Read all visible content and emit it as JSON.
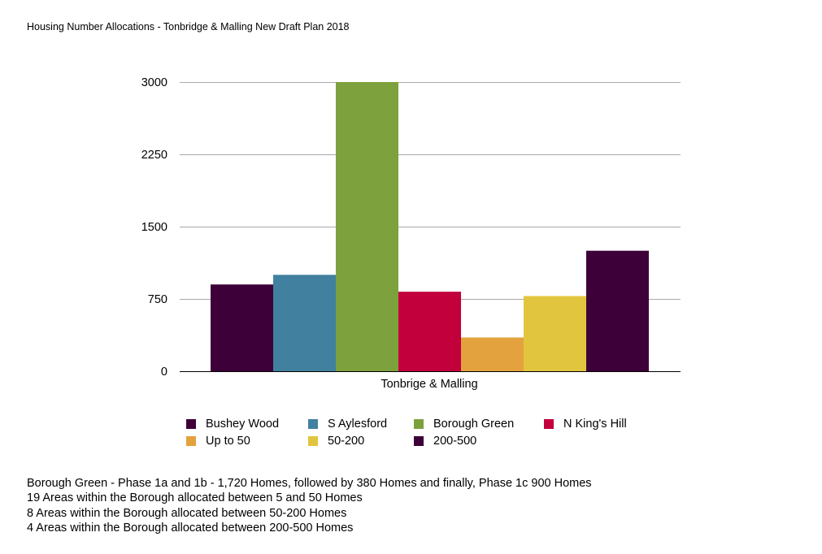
{
  "page": {
    "title": "Housing Number Allocations - Tonbridge & Malling New Draft Plan 2018"
  },
  "chart_data": {
    "type": "bar",
    "categories": [
      "Tonbrige & Malling"
    ],
    "series": [
      {
        "name": "Bushey Wood",
        "color": "#3e0038",
        "values": [
          900
        ]
      },
      {
        "name": "S Aylesford",
        "color": "#41809f",
        "values": [
          1000
        ]
      },
      {
        "name": "Borough Green",
        "color": "#7da13c",
        "values": [
          3000
        ]
      },
      {
        "name": "N King's Hill",
        "color": "#c2003c",
        "values": [
          825
        ]
      },
      {
        "name": "Up to 50",
        "color": "#e3a23e",
        "values": [
          350
        ]
      },
      {
        "name": "50-200",
        "color": "#e2c53e",
        "values": [
          780
        ]
      },
      {
        "name": "200-500",
        "color": "#3e0038",
        "values": [
          1250
        ]
      }
    ],
    "yticks": [
      "0",
      "750",
      "1500",
      "2250",
      "3000"
    ],
    "ylim": [
      0,
      3000
    ],
    "grid": true,
    "legend_position": "bottom",
    "xlabel": "",
    "ylabel": ""
  },
  "notes": [
    "Borough Green - Phase 1a and 1b - 1,720 Homes, followed by 380 Homes and finally, Phase 1c 900 Homes",
    "19 Areas within the Borough allocated between 5 and 50 Homes",
    "8 Areas within the Borough allocated between 50-200 Homes",
    "4 Areas within the Borough allocated between 200-500 Homes"
  ]
}
